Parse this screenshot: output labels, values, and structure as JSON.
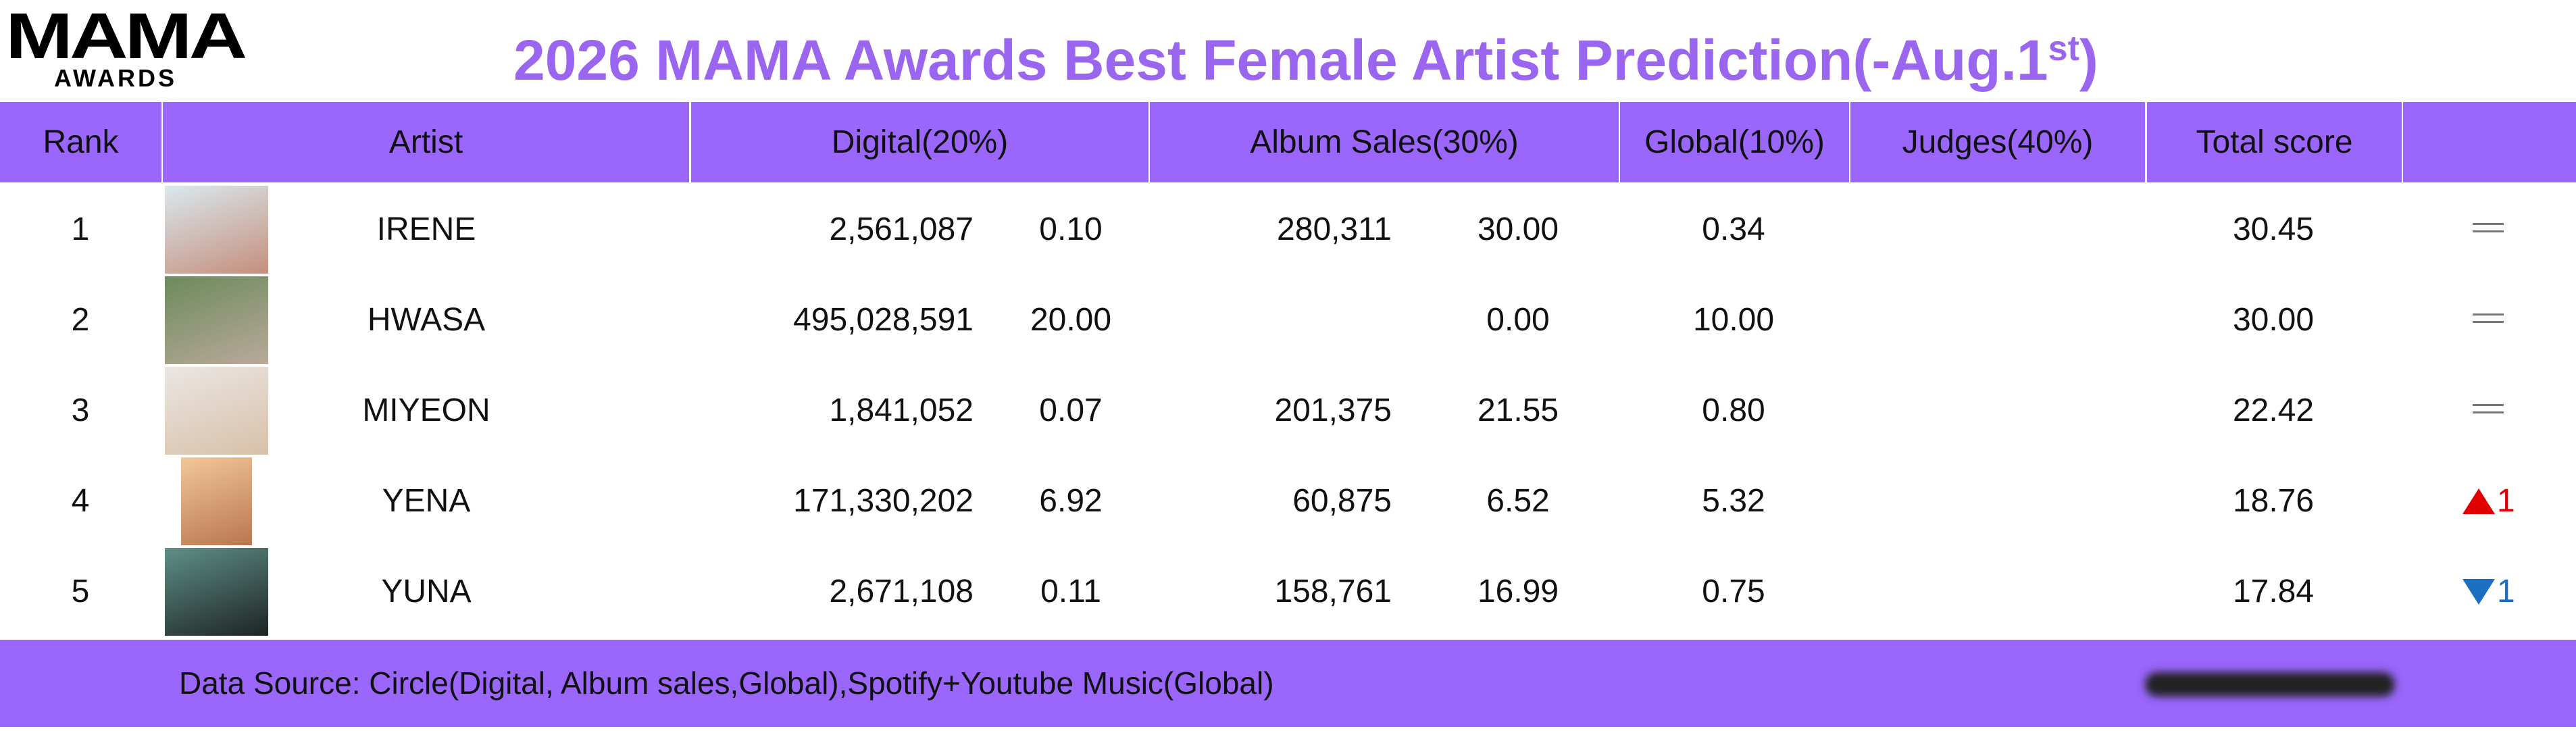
{
  "header": {
    "logo": "MAMA",
    "logo_sub": "AWARDS",
    "title": "2026 MAMA Awards Best Female Artist Prediction(-Aug.1",
    "title_sup": "st",
    "title_end": ")"
  },
  "table": {
    "columns": [
      "Rank",
      "Artist",
      "Digital(20%)",
      "Album Sales(30%)",
      "Global(10%)",
      "Judges(40%)",
      "Total score"
    ],
    "rows": [
      {
        "rank": 1,
        "artist": "IRENE",
        "digital": "2,561,087",
        "digital_score": "0.10",
        "album": "280,311",
        "album_score": "30.00",
        "global": "0.34",
        "total": "30.45",
        "change": {
          "trend": "same"
        }
      },
      {
        "rank": 2,
        "artist": "HWASA",
        "digital": "495,028,591",
        "digital_score": "20.00",
        "album": null,
        "album_score": "0.00",
        "global": "10.00",
        "total": "30.00",
        "change": {
          "trend": "same"
        }
      },
      {
        "rank": 3,
        "artist": "MIYEON",
        "digital": "1,841,052",
        "digital_score": "0.07",
        "album": "201,375",
        "album_score": "21.55",
        "global": "0.80",
        "total": "22.42",
        "change": {
          "trend": "same"
        }
      },
      {
        "rank": 4,
        "artist": "YENA",
        "digital": "171,330,202",
        "digital_score": "6.92",
        "album": "60,875",
        "album_score": "6.52",
        "global": "5.32",
        "total": "18.76",
        "change": {
          "trend": "up",
          "value": 1
        }
      },
      {
        "rank": 5,
        "artist": "YUNA",
        "digital": "2,671,108",
        "digital_score": "0.11",
        "album": "158,761",
        "album_score": "16.99",
        "global": "0.75",
        "total": "17.84",
        "change": {
          "trend": "down",
          "value": 1
        }
      }
    ]
  },
  "footer": {
    "source": "Data Source: Circle(Digital, Album sales,Global),Spotify+Youtube Music(Global)"
  }
}
